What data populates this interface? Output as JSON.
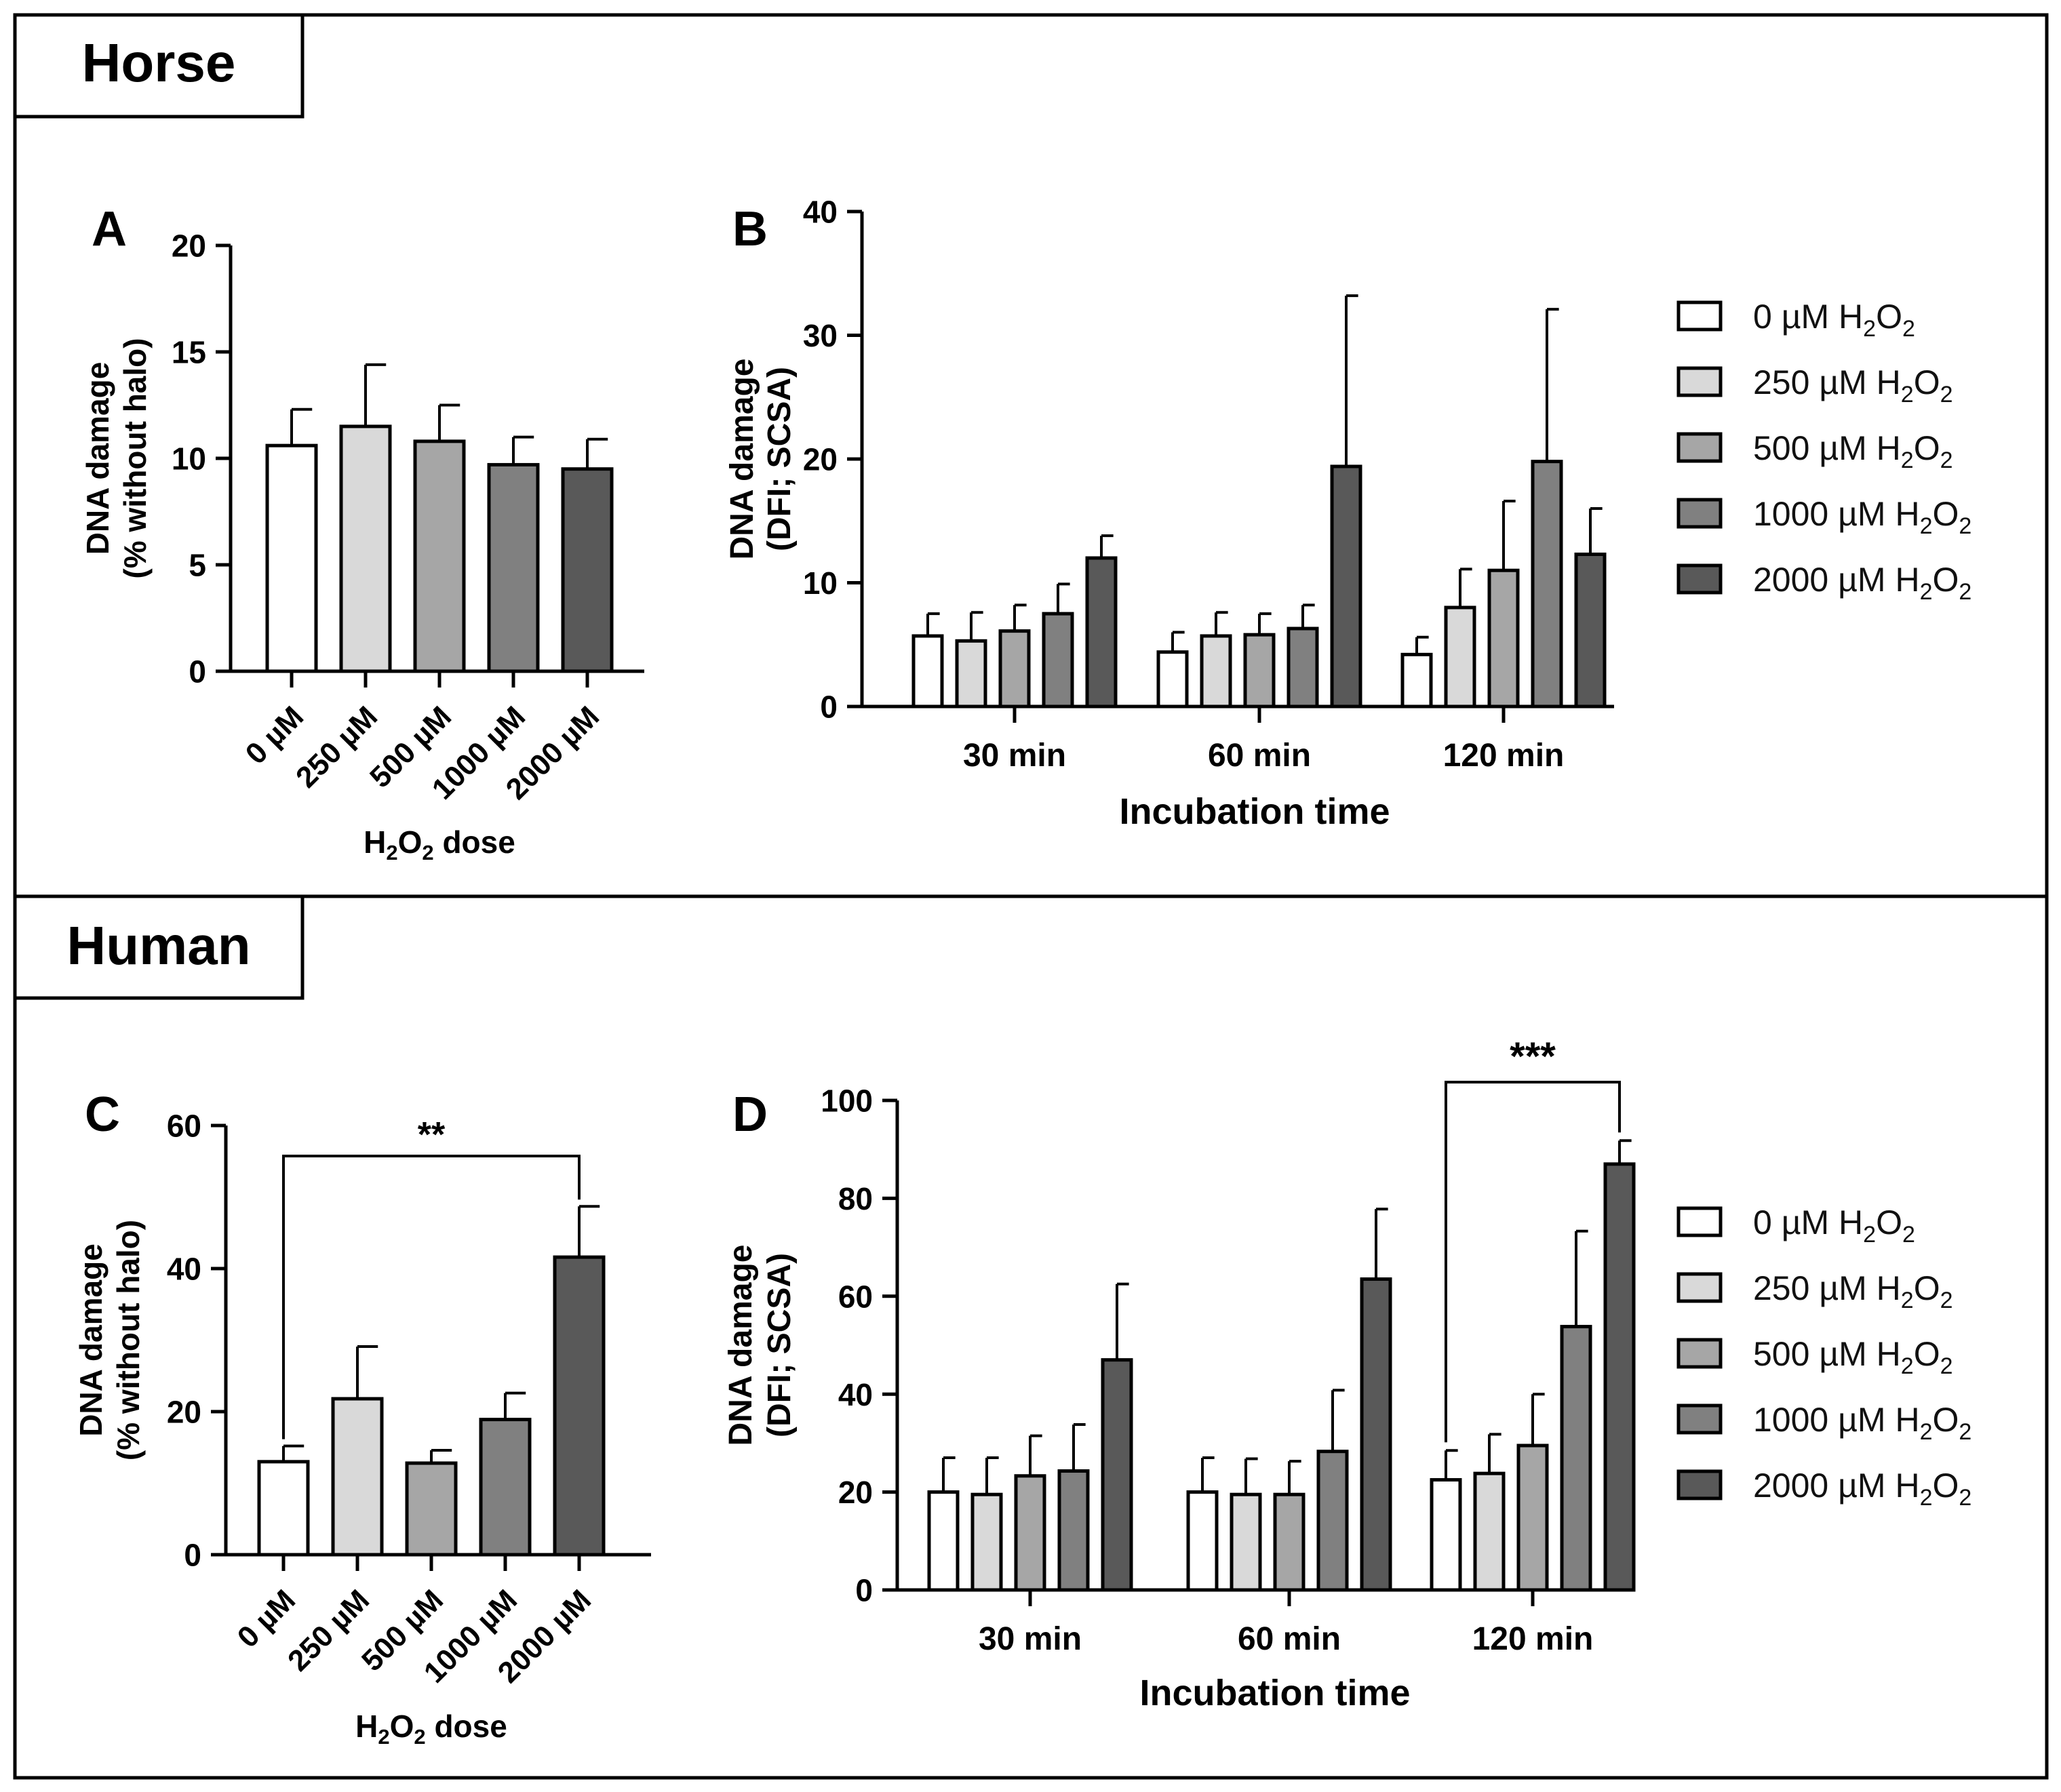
{
  "sections": {
    "horse": {
      "title": "Horse"
    },
    "human": {
      "title": "Human"
    }
  },
  "panel_letters": {
    "a": "A",
    "b": "B",
    "c": "C",
    "d": "D"
  },
  "legend": {
    "items": [
      {
        "prefix": "0 µM H",
        "mid": "O",
        "sub": "2",
        "color": "#ffffff"
      },
      {
        "prefix": "250 µM H",
        "mid": "O",
        "sub": "2",
        "color": "#d9d9d9"
      },
      {
        "prefix": "500 µM H",
        "mid": "O",
        "sub": "2",
        "color": "#a6a6a6"
      },
      {
        "prefix": "1000 µM H",
        "mid": "O",
        "sub": "2",
        "color": "#808080"
      },
      {
        "prefix": "2000 µM H",
        "mid": "O",
        "sub": "2",
        "color": "#595959"
      }
    ]
  },
  "chart_data": [
    {
      "panel": "A",
      "type": "bar",
      "categories": [
        "0 µM",
        "250 µM",
        "500 µM",
        "1000 µM",
        "2000 µM"
      ],
      "values": [
        10.6,
        11.5,
        10.8,
        9.7,
        9.5
      ],
      "errors": [
        1.7,
        2.9,
        1.7,
        1.3,
        1.4
      ],
      "ylabel_line1": "DNA damage",
      "ylabel_line2": "(% without halo)",
      "xlabel": "H2O2 dose",
      "ylim": [
        0,
        20
      ],
      "yticks": [
        0,
        5,
        10,
        15,
        20
      ],
      "colors": [
        "#ffffff",
        "#d9d9d9",
        "#a6a6a6",
        "#808080",
        "#595959"
      ]
    },
    {
      "panel": "B",
      "type": "bar",
      "categories": [
        "30 min",
        "60 min",
        "120 min"
      ],
      "series": [
        {
          "name": "0 µM H2O2",
          "values": [
            5.7,
            4.4,
            4.2
          ],
          "errors": [
            1.8,
            1.6,
            1.4
          ],
          "color": "#ffffff"
        },
        {
          "name": "250 µM H2O2",
          "values": [
            5.3,
            5.7,
            8.0
          ],
          "errors": [
            2.3,
            1.9,
            3.1
          ],
          "color": "#d9d9d9"
        },
        {
          "name": "500 µM H2O2",
          "values": [
            6.1,
            5.8,
            11.0
          ],
          "errors": [
            2.1,
            1.7,
            5.6
          ],
          "color": "#a6a6a6"
        },
        {
          "name": "1000 µM H2O2",
          "values": [
            7.5,
            6.3,
            19.8
          ],
          "errors": [
            2.4,
            1.9,
            12.3
          ],
          "color": "#808080"
        },
        {
          "name": "2000 µM H2O2",
          "values": [
            12.0,
            19.4,
            12.3
          ],
          "errors": [
            1.8,
            13.8,
            3.7
          ],
          "color": "#595959"
        }
      ],
      "ylabel_line1": "DNA damage",
      "ylabel_line2": "(DFI; SCSA)",
      "xlabel": "Incubation time",
      "ylim": [
        0,
        40
      ],
      "yticks": [
        0,
        10,
        20,
        30,
        40
      ]
    },
    {
      "panel": "C",
      "type": "bar",
      "categories": [
        "0 µM",
        "250 µM",
        "500 µM",
        "1000 µM",
        "2000 µM"
      ],
      "values": [
        13.0,
        21.8,
        12.8,
        18.9,
        41.6
      ],
      "errors": [
        2.2,
        7.3,
        1.8,
        3.7,
        7.1
      ],
      "ylabel_line1": "DNA damage",
      "ylabel_line2": "(% without halo)",
      "xlabel": "H2O2 dose",
      "ylim": [
        0,
        60
      ],
      "yticks": [
        0,
        20,
        40,
        60
      ],
      "significance": {
        "from": 0,
        "to": 4,
        "label": "**"
      },
      "colors": [
        "#ffffff",
        "#d9d9d9",
        "#a6a6a6",
        "#808080",
        "#595959"
      ]
    },
    {
      "panel": "D",
      "type": "bar",
      "categories": [
        "30 min",
        "60 min",
        "120 min"
      ],
      "series": [
        {
          "name": "0 µM H2O2",
          "values": [
            20.0,
            20.0,
            22.5
          ],
          "errors": [
            7.0,
            7.0,
            6.0
          ],
          "color": "#ffffff"
        },
        {
          "name": "250 µM H2O2",
          "values": [
            19.5,
            19.5,
            23.8
          ],
          "errors": [
            7.5,
            7.3,
            8.0
          ],
          "color": "#d9d9d9"
        },
        {
          "name": "500 µM H2O2",
          "values": [
            23.3,
            19.5,
            29.5
          ],
          "errors": [
            8.2,
            6.8,
            10.5
          ],
          "color": "#a6a6a6"
        },
        {
          "name": "1000 µM H2O2",
          "values": [
            24.3,
            28.3,
            53.8
          ],
          "errors": [
            9.5,
            12.5,
            19.5
          ],
          "color": "#808080"
        },
        {
          "name": "2000 µM H2O2",
          "values": [
            47.0,
            63.5,
            87.0
          ],
          "errors": [
            15.5,
            14.3,
            4.8
          ],
          "color": "#595959"
        }
      ],
      "ylabel_line1": "DNA damage",
      "ylabel_line2": "(DFI; SCSA)",
      "xlabel": "Incubation time",
      "ylim": [
        0,
        100
      ],
      "yticks": [
        0,
        20,
        40,
        60,
        80,
        100
      ],
      "significance": {
        "group": 2,
        "from": 0,
        "to": 4,
        "label": "***"
      }
    }
  ]
}
